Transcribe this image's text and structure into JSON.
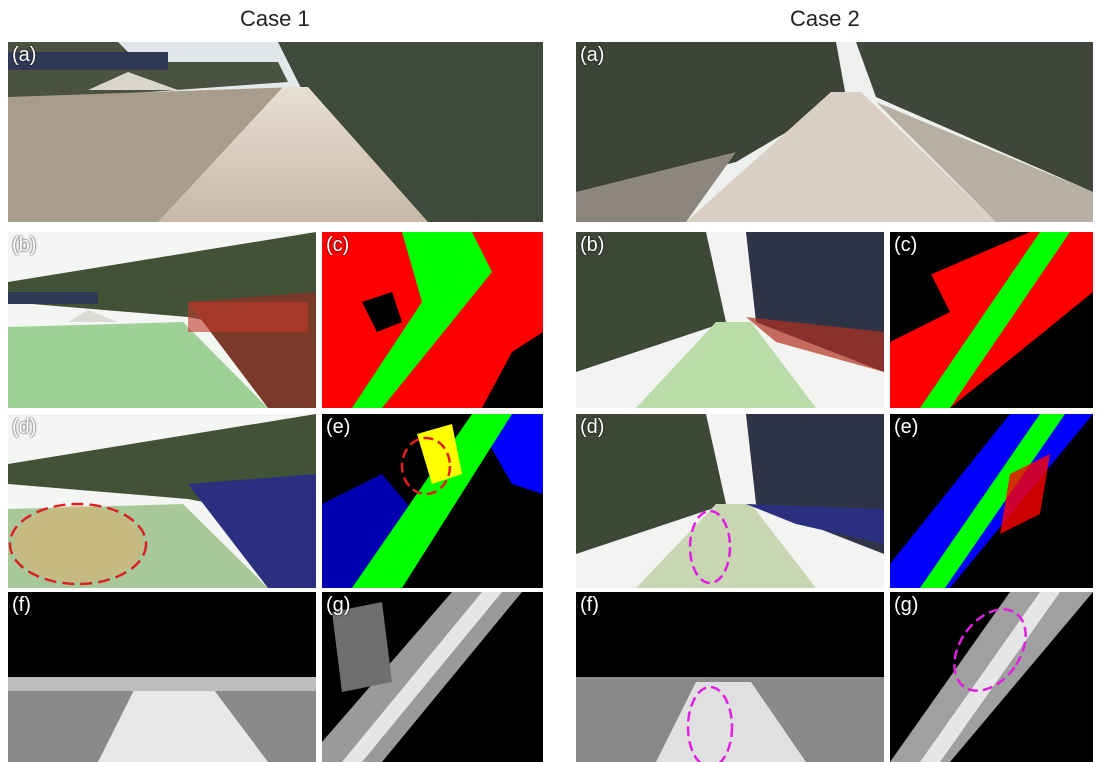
{
  "figure": {
    "case1": {
      "title": "Case 1",
      "panels": {
        "a": "(a)",
        "b": "(b)",
        "c": "(c)",
        "d": "(d)",
        "e": "(e)",
        "f": "(f)",
        "g": "(g)"
      }
    },
    "case2": {
      "title": "Case 2",
      "panels": {
        "a": "(a)",
        "b": "(b)",
        "c": "(c)",
        "d": "(d)",
        "e": "(e)",
        "f": "(f)",
        "g": "(g)"
      }
    }
  },
  "colors": {
    "red_mark": "#e02020",
    "magenta_mark": "#e020e0",
    "class_red": "#ff0000",
    "class_green": "#00ff00",
    "class_blue": "#0000ff",
    "class_yellow": "#ffff00"
  }
}
